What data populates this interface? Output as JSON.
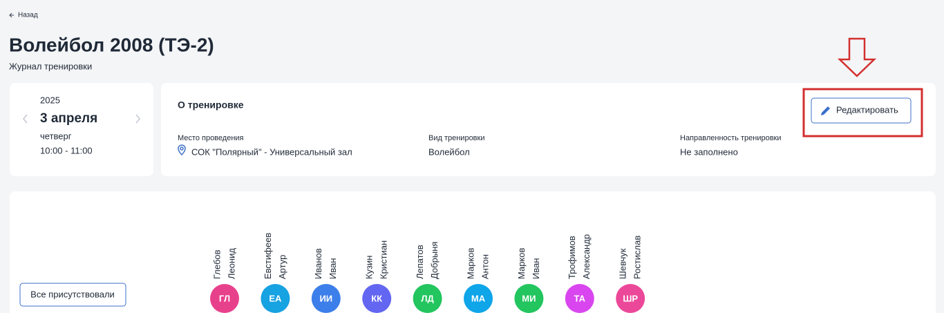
{
  "back": "Назад",
  "header": {
    "title": "Волейбол 2008 (ТЭ-2)",
    "subtitle": "Журнал тренировки"
  },
  "date_card": {
    "year": "2025",
    "date": "3 апреля",
    "weekday": "четверг",
    "time": "10:00 - 11:00"
  },
  "about": {
    "heading": "О тренировке",
    "edit_button": "Редактировать",
    "fields": [
      {
        "label": "Место проведения",
        "value": "СОК \"Полярный\" - Универсальный зал"
      },
      {
        "label": "Вид тренировки",
        "value": "Волейбол"
      },
      {
        "label": "Направленность тренировки",
        "value": "Не заполнено"
      }
    ]
  },
  "attendance": {
    "all_button": "Все присутствовали",
    "athletes": [
      {
        "surname": "Глебов",
        "name": "Леонид",
        "initials": "ГЛ",
        "color": "#e8418c"
      },
      {
        "surname": "Евстифеев",
        "name": "Артур",
        "initials": "ЕА",
        "color": "#17a2e2"
      },
      {
        "surname": "Иванов",
        "name": "Иван",
        "initials": "ИИ",
        "color": "#3d7fea"
      },
      {
        "surname": "Кузин",
        "name": "Кристиан",
        "initials": "КК",
        "color": "#6366f1"
      },
      {
        "surname": "Лепатов",
        "name": "Добрыня",
        "initials": "ЛД",
        "color": "#22c55e"
      },
      {
        "surname": "Марков",
        "name": "Антон",
        "initials": "МА",
        "color": "#0ea5e9"
      },
      {
        "surname": "Марков",
        "name": "Иван",
        "initials": "МИ",
        "color": "#22c55e"
      },
      {
        "surname": "Трофимов",
        "name": "Александр",
        "initials": "ТА",
        "color": "#d946ef"
      },
      {
        "surname": "Шевчук",
        "name": "Ростислав",
        "initials": "ШР",
        "color": "#ec4899"
      }
    ]
  }
}
